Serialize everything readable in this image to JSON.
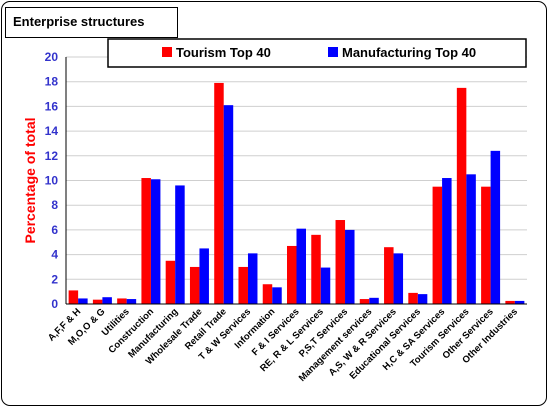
{
  "chart_title": "Enterprise structures",
  "chart_data": {
    "type": "bar",
    "title": "Enterprise structures",
    "xlabel": "",
    "ylabel": "Percentage of total",
    "ylim": [
      0,
      20
    ],
    "yticks": [
      "0",
      "2",
      "4",
      "6",
      "8",
      "10",
      "12",
      "14",
      "16",
      "18",
      "20"
    ],
    "grid": true,
    "legend_position": "top",
    "categories": [
      "A,F,F & H",
      "M,O,O & G",
      "Utilities",
      "Construction",
      "Manufacturing",
      "Wholesale Trade",
      "Retail Trade",
      "T & W Services",
      "Information",
      "F & I Services",
      "RE, R & L Services",
      "P,S,T Services",
      "Management services",
      "A,S, W & R Services",
      "Educational Services",
      "H,C & SA Services",
      "Tourism Services",
      "Other Services",
      "Other Industries"
    ],
    "series": [
      {
        "name": "Tourism Top 40",
        "color": "#ff0000",
        "values": [
          1.1,
          0.35,
          0.45,
          10.2,
          3.5,
          3.0,
          17.9,
          3.0,
          1.6,
          4.7,
          5.6,
          6.8,
          0.4,
          4.6,
          0.9,
          9.5,
          17.5,
          9.5,
          0.25
        ]
      },
      {
        "name": "Manufacturing Top 40",
        "color": "#0000ff",
        "values": [
          0.45,
          0.55,
          0.4,
          10.1,
          9.6,
          4.5,
          16.1,
          4.1,
          1.35,
          6.1,
          2.95,
          6.0,
          0.5,
          4.1,
          0.8,
          10.2,
          10.5,
          12.4,
          0.25
        ]
      }
    ]
  },
  "colors": {
    "ytick": "#3333cc",
    "ylabel": "#ff0000",
    "grid": "#cfcfcf"
  }
}
